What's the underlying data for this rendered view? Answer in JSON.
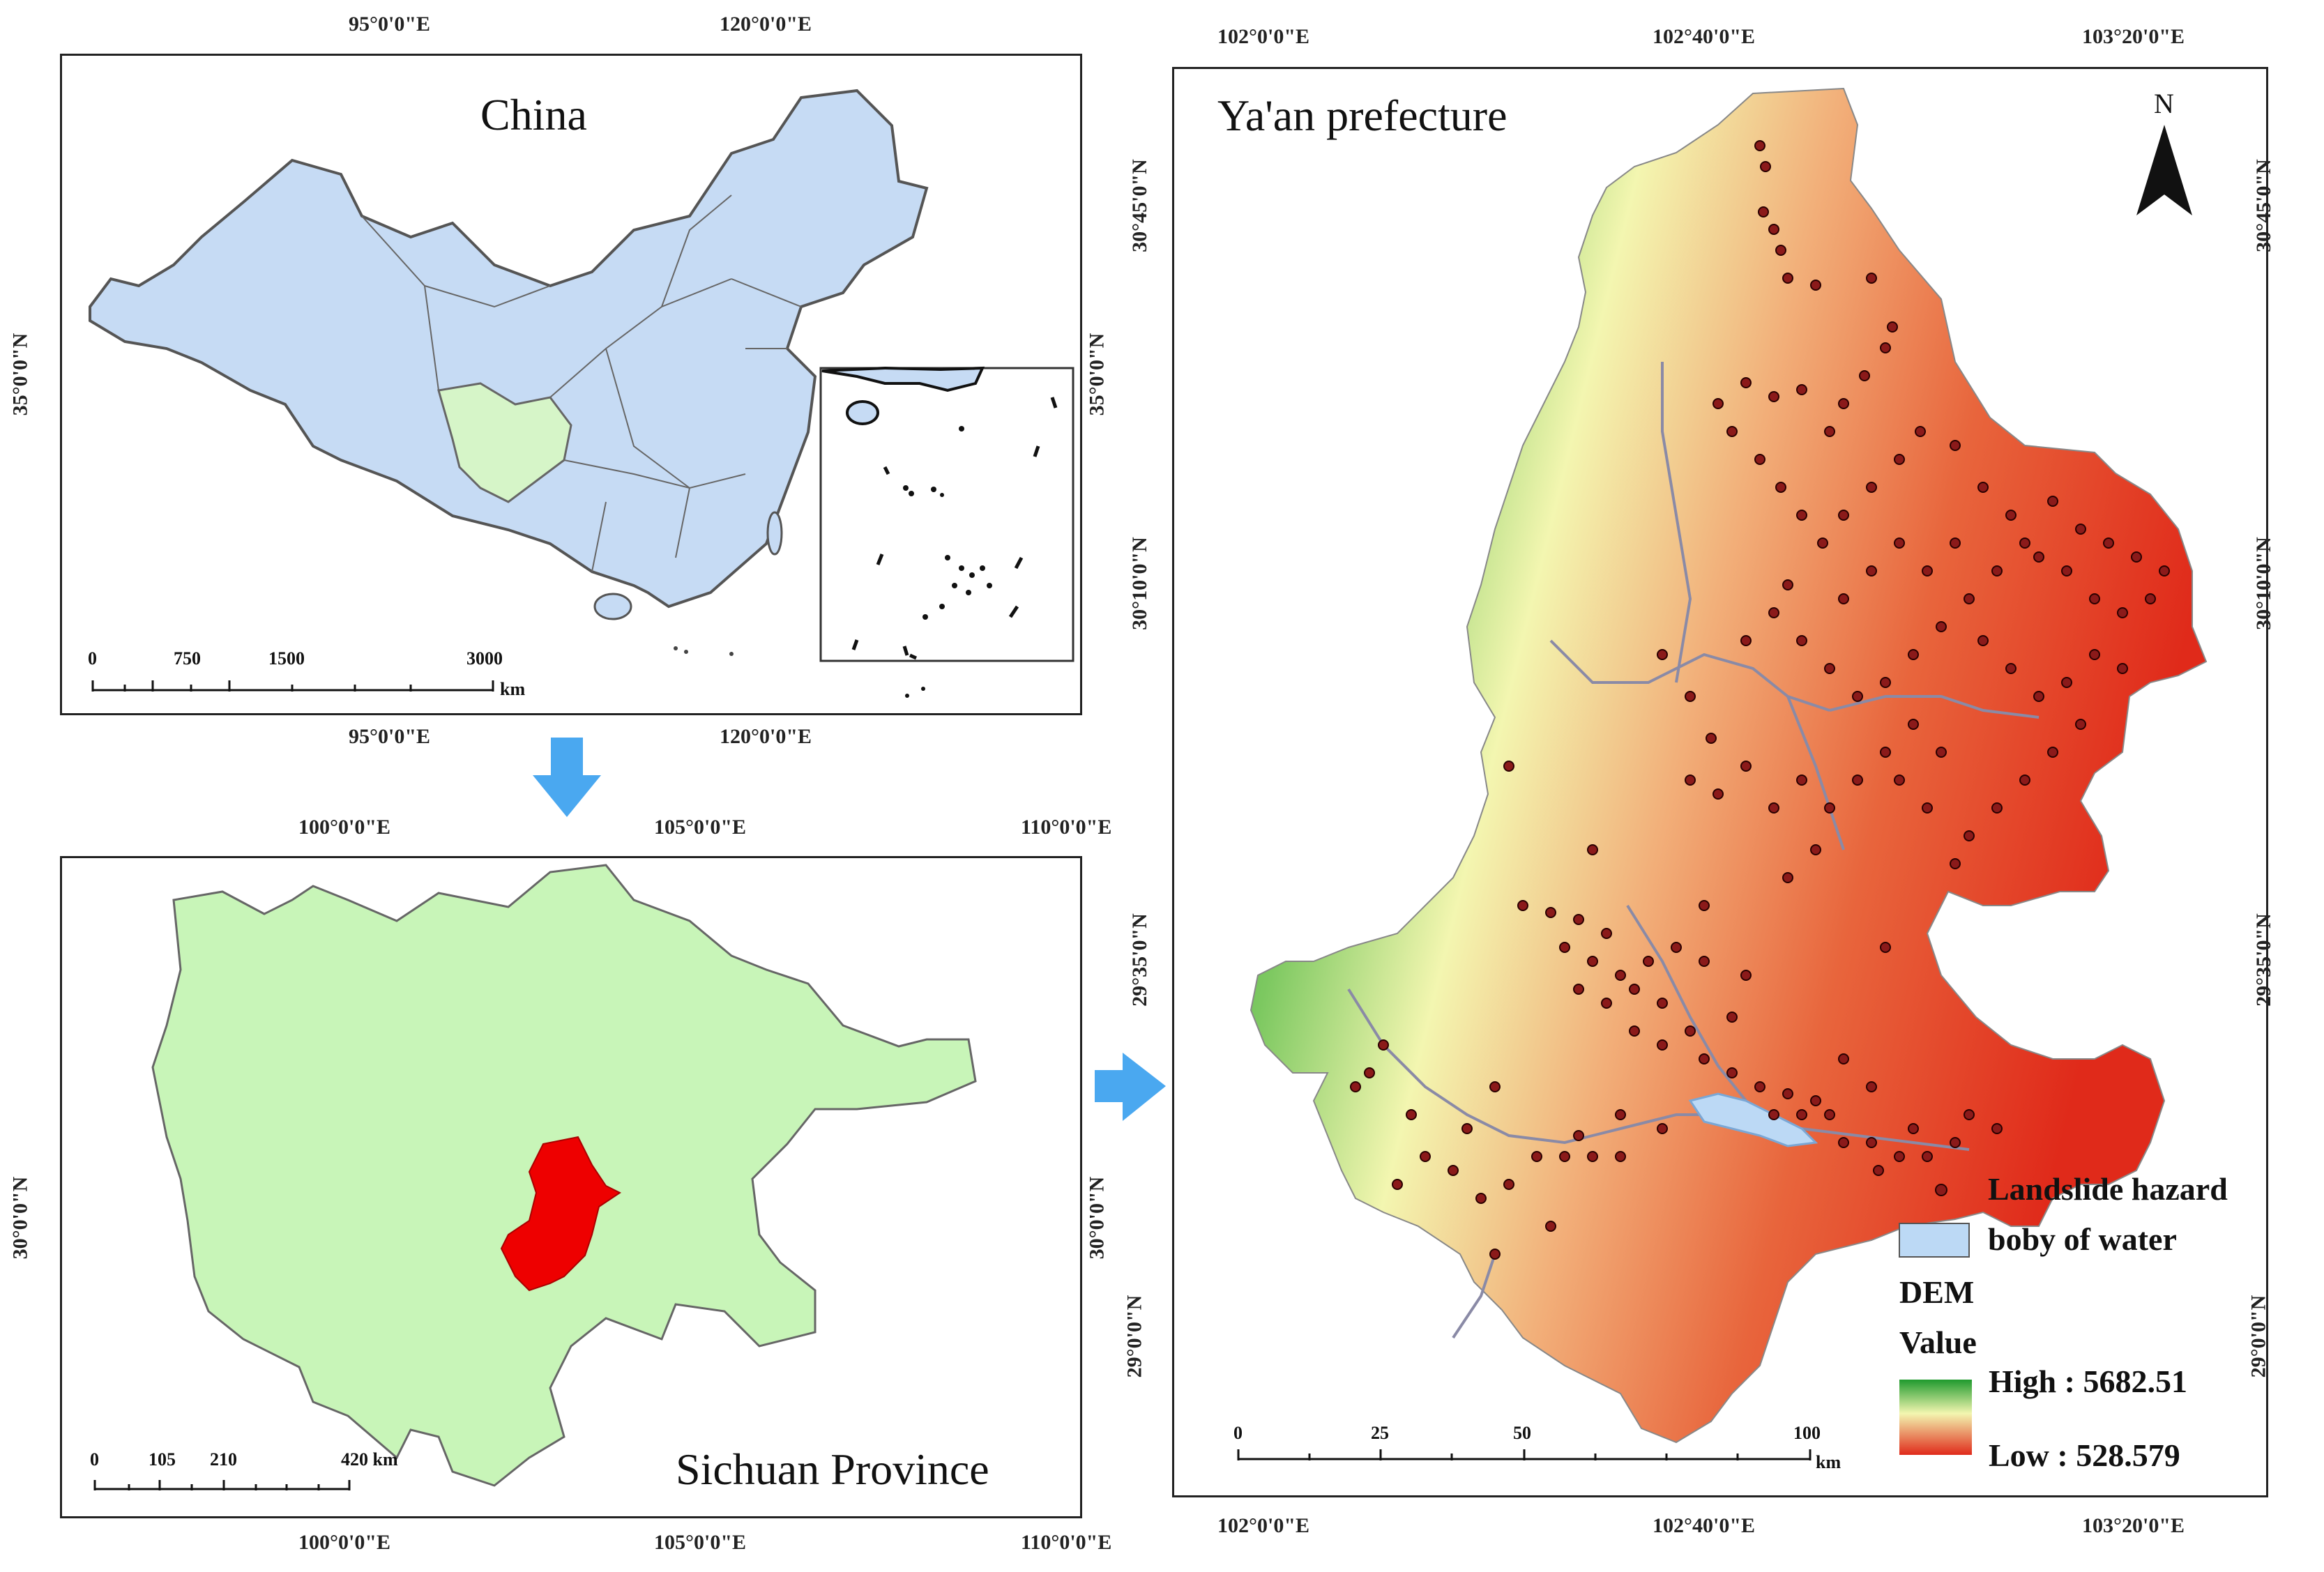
{
  "china_panel": {
    "title": "China",
    "top_ticks": [
      "95°0'0\"E",
      "120°0'0\"E"
    ],
    "bottom_ticks": [
      "95°0'0\"E",
      "120°0'0\"E"
    ],
    "left_tick": "35°0'0\"N",
    "right_tick": "35°0'0\"N",
    "scale_labels": [
      "0",
      "750",
      "1500",
      "3000"
    ],
    "scale_unit": "km",
    "colors": {
      "land": "#c6dbf4",
      "sichuan": "#d6f5c8",
      "border": "#555555"
    }
  },
  "sichuan_panel": {
    "title": "Sichuan Province",
    "top_ticks": [
      "100°0'0\"E",
      "105°0'0\"E",
      "110°0'0\"E"
    ],
    "bottom_ticks": [
      "100°0'0\"E",
      "105°0'0\"E",
      "110°0'0\"E"
    ],
    "left_tick": "30°0'0\"N",
    "right_tick": "30°0'0\"N",
    "scale_labels": [
      "0",
      "105",
      "210",
      "420 km"
    ],
    "colors": {
      "land": "#c8f5b8",
      "yaan": "#ee0000"
    }
  },
  "yaan_panel": {
    "title": "Ya'an prefecture",
    "north": "N",
    "top_ticks": [
      "102°0'0\"E",
      "102°40'0\"E",
      "103°20'0\"E"
    ],
    "bottom_ticks": [
      "102°0'0\"E",
      "102°40'0\"E",
      "103°20'0\"E"
    ],
    "left_ticks": [
      "30°45'0\"N",
      "30°10'0\"N",
      "29°35'0\"N",
      "29°0'0\"N"
    ],
    "right_ticks": [
      "30°45'0\"N",
      "30°10'0\"N",
      "29°35'0\"N",
      "29°0'0\"N"
    ],
    "scale_labels": [
      "0",
      "25",
      "50",
      "100"
    ],
    "scale_unit": "km",
    "colors": {
      "dem_high": "#1f9a2e",
      "dem_mid": "#f3f6b0",
      "dem_low": "#e02a1a",
      "water": "#bcd9f5",
      "hazard": "#8b1a1a"
    }
  },
  "legend": {
    "hazard": "Landslide hazard",
    "water": "boby of water",
    "dem": "DEM",
    "value": "Value",
    "high": "High : 5682.51",
    "low": "Low : 528.579"
  },
  "arrows": {
    "color": "#4aa8f0"
  }
}
